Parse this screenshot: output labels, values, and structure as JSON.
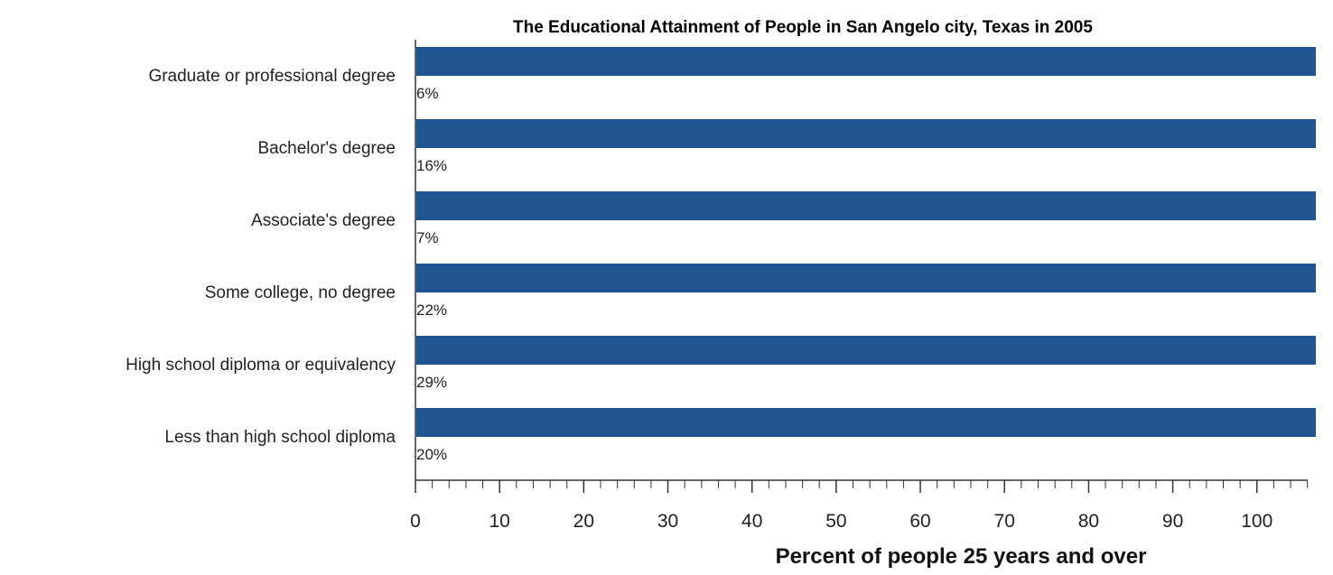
{
  "chart_data": {
    "type": "bar",
    "orientation": "horizontal",
    "title": "The Educational Attainment of People in San Angelo city, Texas in 2005",
    "xlabel": "Percent of people 25 years and over",
    "ylabel": "",
    "categories": [
      "Graduate or professional degree",
      "Bachelor's degree",
      "Associate's degree",
      "Some college, no degree",
      "High school diploma or equivalency",
      "Less than high school diploma"
    ],
    "values": [
      6,
      16,
      7,
      22,
      29,
      20
    ],
    "data_labels": [
      "6%",
      "16%",
      "7%",
      "22%",
      "29%",
      "20%"
    ],
    "xlim": [
      0,
      107
    ],
    "xticks": [
      0,
      10,
      20,
      30,
      40,
      50,
      60,
      70,
      80,
      90,
      100
    ],
    "grid": false,
    "legend": "none",
    "bar_color": "#1f5591"
  }
}
